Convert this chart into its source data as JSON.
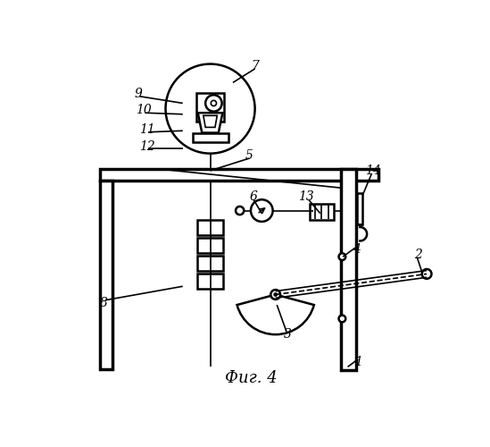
{
  "title": "Фиг. 4",
  "background_color": "#ffffff",
  "line_color": "#000000"
}
